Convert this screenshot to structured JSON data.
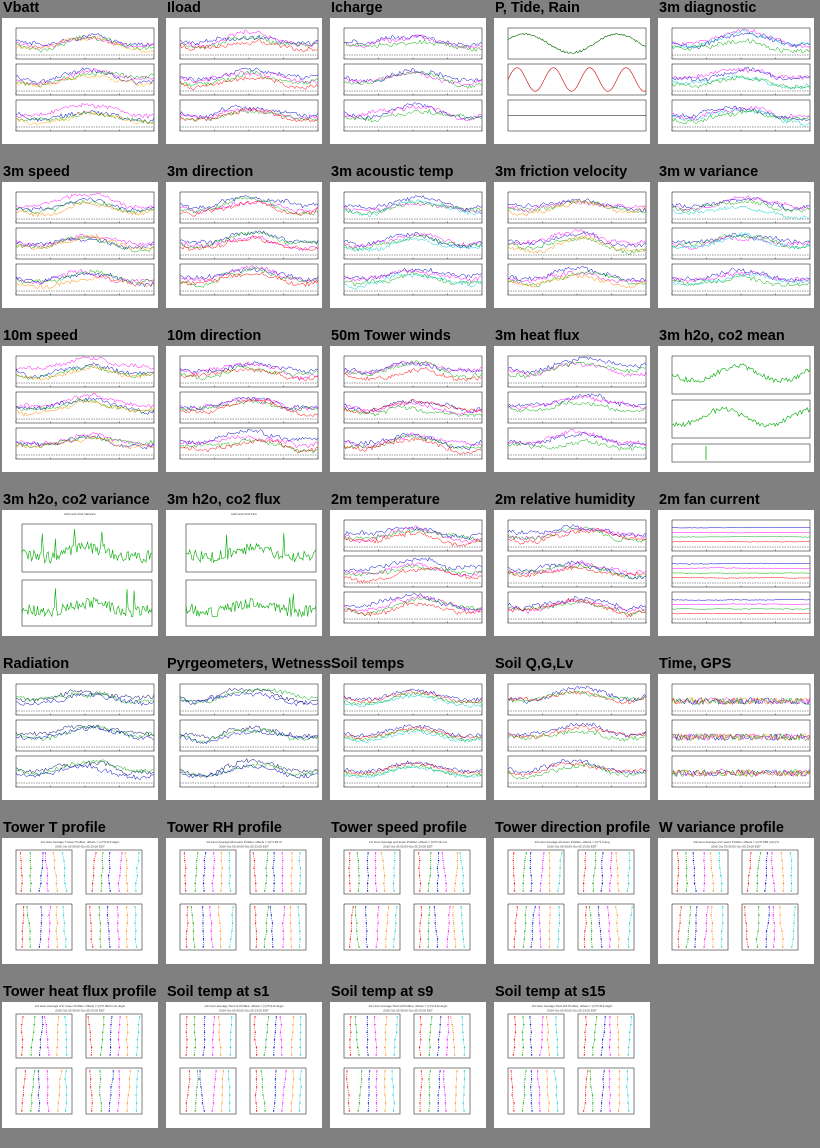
{
  "grid": {
    "columns": 5,
    "rows": 7,
    "cell_width_hint": "even"
  },
  "panels": [
    {
      "id": "vbatt",
      "title": "Vbatt",
      "kind": "ts3",
      "colors": [
        "#0000cc",
        "#ff00ff",
        "#00aa00",
        "#ffaa00"
      ]
    },
    {
      "id": "iload",
      "title": "Iload",
      "kind": "ts3",
      "colors": [
        "#0000cc",
        "#ff00ff",
        "#00aa00",
        "#ff0000"
      ]
    },
    {
      "id": "icharge",
      "title": "Icharge",
      "kind": "ts3",
      "colors": [
        "#0000cc",
        "#ff00ff",
        "#00aa00"
      ]
    },
    {
      "id": "ptide",
      "title": "P, Tide, Rain",
      "kind": "ptr",
      "colors": [
        "#006600",
        "#cc0000",
        "#000000"
      ]
    },
    {
      "id": "diag3m",
      "title": "3m diagnostic",
      "kind": "ts3",
      "colors": [
        "#ff00ff",
        "#0000cc",
        "#00cccc",
        "#00aa00"
      ]
    },
    {
      "id": "speed3m",
      "title": "3m speed",
      "kind": "ts3",
      "colors": [
        "#ff00ff",
        "#0000cc",
        "#00aa00",
        "#ff8800"
      ]
    },
    {
      "id": "dir3m",
      "title": "3m direction",
      "kind": "ts3",
      "colors": [
        "#0000cc",
        "#ff00ff",
        "#00aa00",
        "#ff0000"
      ]
    },
    {
      "id": "tc3m",
      "title": "3m acoustic temp",
      "kind": "ts3",
      "colors": [
        "#0000cc",
        "#ff00ff",
        "#00aa00",
        "#00cccc"
      ]
    },
    {
      "id": "ustar3m",
      "title": "3m friction velocity",
      "kind": "ts3",
      "colors": [
        "#0000cc",
        "#ff00ff",
        "#00aa00",
        "#ff8800"
      ]
    },
    {
      "id": "wvar3m",
      "title": "3m w variance",
      "kind": "ts3",
      "colors": [
        "#0000cc",
        "#ff00ff",
        "#00aa00",
        "#00cccc"
      ]
    },
    {
      "id": "speed10m",
      "title": "10m speed",
      "kind": "ts3",
      "colors": [
        "#ff00ff",
        "#0000cc",
        "#00aa00",
        "#ff8800"
      ]
    },
    {
      "id": "dir10m",
      "title": "10m direction",
      "kind": "ts3",
      "colors": [
        "#0000cc",
        "#ff00ff",
        "#00aa00",
        "#ff0000"
      ]
    },
    {
      "id": "tower50m",
      "title": "50m Tower winds",
      "kind": "ts3",
      "colors": [
        "#0000cc",
        "#ff00ff",
        "#00aa00",
        "#ff0000"
      ]
    },
    {
      "id": "hflux3m",
      "title": "3m heat flux",
      "kind": "ts3",
      "colors": [
        "#0000cc",
        "#ff00ff",
        "#00aa00"
      ]
    },
    {
      "id": "h2ocomean",
      "title": "3m h2o, co2 mean",
      "kind": "ts2",
      "colors": [
        "#00aa00",
        "#00aa00"
      ]
    },
    {
      "id": "h2ocovar",
      "title": "3m h2o, co2 variance",
      "kind": "ts2big",
      "colors": [
        "#00aa00",
        "#00aa00"
      ]
    },
    {
      "id": "h2ocoflux",
      "title": "3m h2o, co2 flux",
      "kind": "ts2big",
      "colors": [
        "#00aa00",
        "#00aa00"
      ]
    },
    {
      "id": "temp2m",
      "title": "2m temperature",
      "kind": "ts3",
      "colors": [
        "#0000cc",
        "#ff00ff",
        "#00aa00",
        "#ff0000"
      ]
    },
    {
      "id": "rh2m",
      "title": "2m relative humidity",
      "kind": "ts3",
      "colors": [
        "#0000cc",
        "#ff00ff",
        "#00aa00",
        "#ff0000"
      ]
    },
    {
      "id": "fan2m",
      "title": "2m fan current",
      "kind": "ts3flat",
      "colors": [
        "#0000cc",
        "#ff00ff",
        "#00aa00",
        "#ff0000"
      ]
    },
    {
      "id": "radiation",
      "title": "Radiation",
      "kind": "ts3",
      "colors": [
        "#000066",
        "#00aa00",
        "#0000cc"
      ]
    },
    {
      "id": "pyrg",
      "title": "Pyrgeometers, Wetness",
      "kind": "ts3",
      "colors": [
        "#000066",
        "#00aa00",
        "#0000cc"
      ]
    },
    {
      "id": "soiltemps",
      "title": "Soil temps",
      "kind": "ts3smooth",
      "colors": [
        "#0000cc",
        "#ff0000",
        "#00aa00",
        "#00cccc"
      ]
    },
    {
      "id": "soilq",
      "title": "Soil Q,G,Lv",
      "kind": "ts3",
      "colors": [
        "#0000cc",
        "#ff0000",
        "#00aa00"
      ]
    },
    {
      "id": "timegps",
      "title": "Time, GPS",
      "kind": "tsgps",
      "colors": [
        "#0000cc",
        "#ff00ff",
        "#00aa00",
        "#ff8800"
      ]
    },
    {
      "id": "towert",
      "title": "Tower T profile",
      "kind": "profile",
      "colors": [
        "#ff0000",
        "#00aa00",
        "#0000cc",
        "#ff00ff",
        "#ff8800",
        "#00cccc"
      ]
    },
    {
      "id": "towerrh",
      "title": "Tower RH profile",
      "kind": "profile",
      "colors": [
        "#ff0000",
        "#00aa00",
        "#0000cc",
        "#ff00ff",
        "#ff8800",
        "#00cccc"
      ]
    },
    {
      "id": "towerspd",
      "title": "Tower speed profile",
      "kind": "profile",
      "colors": [
        "#ff0000",
        "#00aa00",
        "#0000cc",
        "#ff00ff",
        "#ff8800",
        "#00cccc"
      ]
    },
    {
      "id": "towerdir",
      "title": "Tower direction profile",
      "kind": "profile",
      "colors": [
        "#ff0000",
        "#00aa00",
        "#0000cc",
        "#ff00ff",
        "#ff8800",
        "#00cccc"
      ]
    },
    {
      "id": "wvarprof",
      "title": "W variance profile",
      "kind": "profile",
      "colors": [
        "#ff0000",
        "#00aa00",
        "#0000cc",
        "#ff00ff",
        "#ff8800",
        "#00cccc"
      ]
    },
    {
      "id": "towerhf",
      "title": "Tower heat flux profile",
      "kind": "profile",
      "colors": [
        "#ff0000",
        "#00aa00",
        "#0000cc",
        "#ff00ff",
        "#ff8800",
        "#00cccc"
      ]
    },
    {
      "id": "soils1",
      "title": "Soil temp at s1",
      "kind": "profile",
      "colors": [
        "#ff0000",
        "#00aa00",
        "#0000cc",
        "#ff00ff",
        "#ff8800",
        "#00cccc"
      ]
    },
    {
      "id": "soils9",
      "title": "Soil temp at s9",
      "kind": "profile",
      "colors": [
        "#ff0000",
        "#00aa00",
        "#0000cc",
        "#ff00ff",
        "#ff8800",
        "#00cccc"
      ]
    },
    {
      "id": "soils15",
      "title": "Soil temp at s15",
      "kind": "profile",
      "colors": [
        "#ff0000",
        "#00aa00",
        "#0000cc",
        "#ff00ff",
        "#ff8800",
        "#00cccc"
      ]
    }
  ],
  "chart_data": [
    {
      "type": "line",
      "title": "Vbatt"
    },
    {
      "type": "line",
      "title": "Iload"
    },
    {
      "type": "line",
      "title": "Icharge"
    },
    {
      "type": "line",
      "title": "P, Tide, Rain"
    },
    {
      "type": "line",
      "title": "3m diagnostic"
    },
    {
      "type": "line",
      "title": "3m speed"
    },
    {
      "type": "line",
      "title": "3m direction"
    },
    {
      "type": "line",
      "title": "3m acoustic temp"
    },
    {
      "type": "line",
      "title": "3m friction velocity"
    },
    {
      "type": "line",
      "title": "3m w variance"
    },
    {
      "type": "line",
      "title": "10m speed"
    },
    {
      "type": "line",
      "title": "10m direction"
    },
    {
      "type": "line",
      "title": "50m Tower winds"
    },
    {
      "type": "line",
      "title": "3m heat flux"
    },
    {
      "type": "line",
      "title": "3m h2o, co2 mean"
    },
    {
      "type": "line",
      "title": "3m h2o, co2 variance",
      "subtitle": "H2O and CO2 Variance"
    },
    {
      "type": "line",
      "title": "3m h2o, co2 flux",
      "subtitle": "H2O and CO2 Flux"
    },
    {
      "type": "line",
      "title": "2m temperature"
    },
    {
      "type": "line",
      "title": "2m relative humidity"
    },
    {
      "type": "line",
      "title": "2m fan current"
    },
    {
      "type": "line",
      "title": "Radiation"
    },
    {
      "type": "line",
      "title": "Pyrgeometers, Wetness"
    },
    {
      "type": "line",
      "title": "Soil temps"
    },
    {
      "type": "line",
      "title": "Soil Q,G,Lv"
    },
    {
      "type": "line",
      "title": "Time, GPS"
    },
    {
      "type": "line",
      "title": "Tower T profile",
      "subtitle": "1/2 Hour Average T.tower Profiles; offsets = (n)*0.372 degC",
      "date_range": "2016 Oct 05 00:00-Oct 05 23:00 EDT"
    },
    {
      "type": "line",
      "title": "Tower RH profile",
      "subtitle": "1/2 Hour Average RH.tower Profiles; offsets = (n)*1.82 %",
      "date_range": "2016 Oct 05 00:00-Oct 05 23:00 EDT"
    },
    {
      "type": "line",
      "title": "Tower speed profile",
      "subtitle": "1/2 Hour Average spd.tower Profiles; offsets = (n)*0.19 m/s",
      "date_range": "2016 Oct 05 00:00-Oct 05 23:00 EDT"
    },
    {
      "type": "line",
      "title": "Tower direction profile",
      "subtitle": "1/2 Hour Average dir.tower Profiles; offsets = (n)*1.3 deg",
      "date_range": "2016 Oct 05 00:00-Oct 05 23:00 EDT"
    },
    {
      "type": "line",
      "title": "W variance profile",
      "subtitle": "1/2 Hour Average w'w' tower Profiles; offsets = (n)*0.048 (m/s)^2",
      "date_range": "2016 Oct 05 00:00-Oct 05 23:00 EDT"
    },
    {
      "type": "line",
      "title": "Tower heat flux profile",
      "subtitle": "1/2 Hour Average w'tc' tower Profiles; offsets = (n)*0.0024 m/s degC",
      "date_range": "2016 Oct 05 00:00-Oct 05 23:00 EDT"
    },
    {
      "type": "line",
      "title": "Soil temp at s1",
      "subtitle": "1/2 Hour Average Tsoil.s1 Profiles; offsets = (n)*0.412 degC",
      "date_range": "2016 Oct 05 00:00-Oct 05 23:00 EDT"
    },
    {
      "type": "line",
      "title": "Soil temp at s9",
      "subtitle": "1/2 Hour Average Tsoil.s9 Profiles; offsets = (n)*0.412 degC",
      "date_range": "2016 Oct 05 00:00-Oct 05 23:00 EDT"
    },
    {
      "type": "line",
      "title": "Soil temp at s15",
      "subtitle": "1/2 Hour Average Tsoil.s15 Profiles; offsets = (n)*0.412 degC",
      "date_range": "2016 Oct 05 00:00-Oct 05 23:00 EDT"
    }
  ]
}
